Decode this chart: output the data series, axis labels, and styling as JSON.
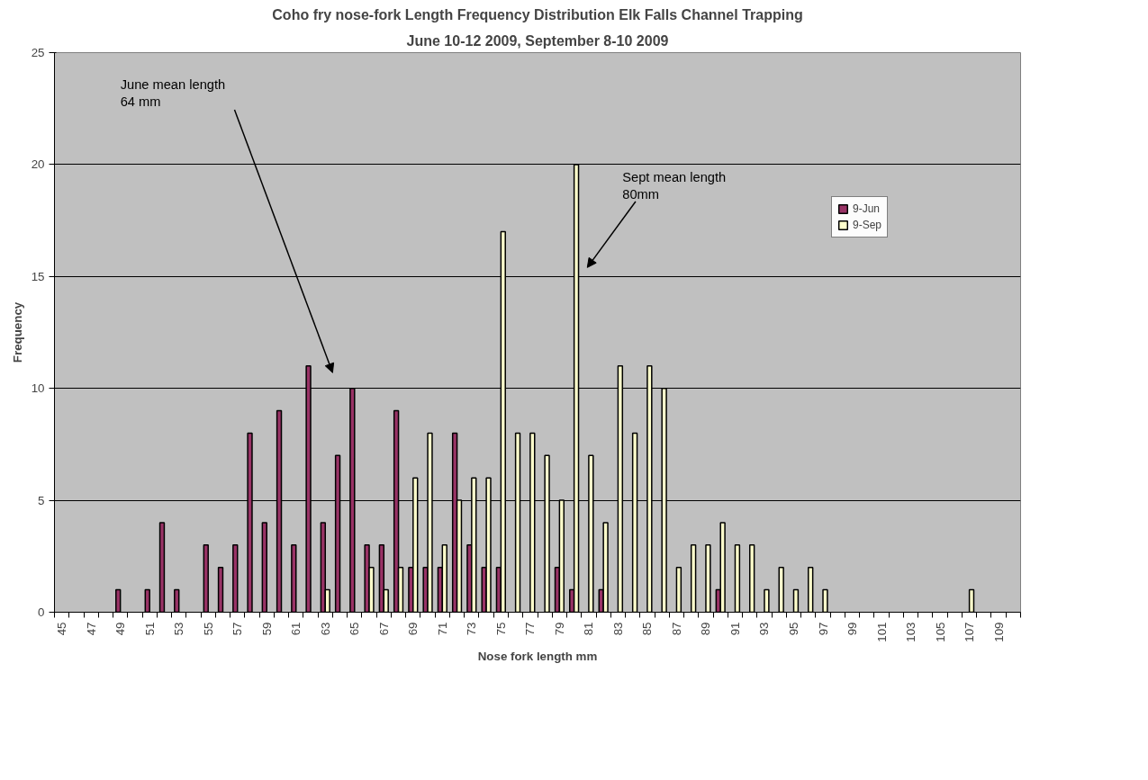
{
  "chart_data": {
    "type": "bar",
    "title": "Coho fry nose-fork Length Frequency Distribution Elk Falls Channel Trapping",
    "subtitle": "June 10-12 2009, September 8-10 2009",
    "xlabel": "Nose fork length mm",
    "ylabel": "Frequency",
    "categories": [
      "45",
      null,
      "47",
      null,
      "49",
      null,
      "51",
      null,
      "53",
      null,
      "55",
      null,
      "57",
      null,
      "59",
      null,
      "61",
      null,
      "63",
      null,
      "65",
      null,
      "67",
      null,
      "69",
      null,
      "71",
      null,
      "73",
      null,
      "75",
      null,
      "77",
      null,
      "79",
      null,
      "81",
      null,
      "83",
      null,
      "85",
      null,
      "87",
      null,
      "89",
      null,
      "91",
      null,
      "93",
      null,
      "95",
      null,
      "97",
      null,
      "99",
      null,
      "101",
      null,
      "103",
      null,
      "105",
      null,
      "107",
      null,
      "109",
      null
    ],
    "series": [
      {
        "name": "9-Jun",
        "color": "#993366",
        "values": [
          0,
          0,
          0,
          0,
          1,
          0,
          1,
          4,
          1,
          0,
          3,
          2,
          3,
          8,
          4,
          9,
          3,
          11,
          4,
          7,
          10,
          3,
          3,
          9,
          2,
          2,
          2,
          8,
          3,
          2,
          2,
          0,
          0,
          0,
          2,
          1,
          0,
          1,
          0,
          0,
          0,
          0,
          0,
          0,
          0,
          1,
          0,
          0,
          0,
          0,
          0,
          0,
          0,
          0,
          0,
          0,
          0,
          0,
          0,
          0,
          0,
          0,
          0,
          0,
          0,
          0
        ]
      },
      {
        "name": "9-Sep",
        "color": "#ffffcc",
        "values": [
          0,
          0,
          0,
          0,
          0,
          0,
          0,
          0,
          0,
          0,
          0,
          0,
          0,
          0,
          0,
          0,
          0,
          0,
          1,
          0,
          0,
          2,
          1,
          2,
          6,
          8,
          3,
          5,
          6,
          6,
          17,
          8,
          8,
          7,
          5,
          20,
          7,
          4,
          11,
          8,
          11,
          10,
          2,
          3,
          3,
          4,
          3,
          3,
          1,
          2,
          1,
          2,
          1,
          0,
          0,
          0,
          0,
          0,
          0,
          0,
          0,
          0,
          1,
          0,
          0,
          0
        ]
      }
    ],
    "ylim": [
      0,
      25
    ],
    "yticks": [
      0,
      5,
      10,
      15,
      20,
      25
    ],
    "grid": "y",
    "legend": "right",
    "annotations": [
      "June mean length\n64 mm",
      "Sept mean length\n80mm"
    ]
  }
}
